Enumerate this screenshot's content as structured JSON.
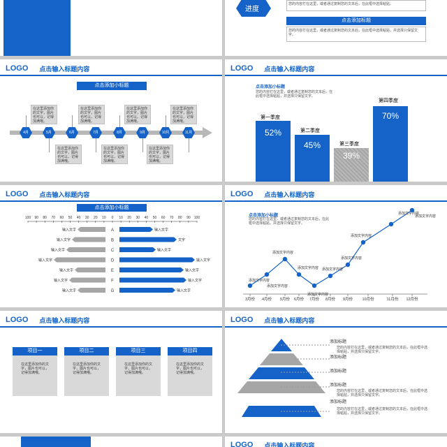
{
  "logo": "LOGO",
  "header_title": "点击输入标题内容",
  "sub_title": "点击添加小标题",
  "lorem_short": "在这里添加你的文字，图片也可以，记得加满哦。",
  "lorem_short2": "在这里添加你的文字，图片也可以，记得加满哦。",
  "lorem_long": "您的内容打在这里，或者通过复制您的文本后，在此框中选择粘贴，并选择只保留文字。",
  "top_right": {
    "hex_label": "进度",
    "box1": "您的内容打在这里，或者通过复制您的文本后，在此框中选择粘贴。",
    "bar_label": "点击添加标题",
    "box2": "您的内容打在这里，或者通过复制您的文本后，在此框中选择粘贴，并选择只保留文字。"
  },
  "timeline": {
    "months": [
      "4月",
      "5月",
      "6月",
      "7月",
      "8月",
      "9月",
      "10月",
      "11月"
    ]
  },
  "quarters": {
    "title": "点击添加小标题",
    "desc": "您的内容打在这里，或者通过复制您的文本后，在此框中选择粘贴，并选择只保留文字。",
    "bars": [
      {
        "label": "第一季度",
        "value": "52%"
      },
      {
        "label": "第二季度",
        "value": "45%"
      },
      {
        "label": "第三季度",
        "value": "39%"
      },
      {
        "label": "第四季度",
        "value": "70%"
      }
    ]
  },
  "butterfly": {
    "axis": [
      "100",
      "90",
      "80",
      "70",
      "60",
      "50",
      "40",
      "30",
      "20",
      "10",
      "0",
      "10",
      "20",
      "30",
      "40",
      "50",
      "60",
      "70",
      "80",
      "90",
      "100"
    ],
    "rows": [
      "A",
      "B",
      "C",
      "D",
      "E",
      "F",
      "G"
    ],
    "left_label": "输入文字",
    "right_label": "输入文字",
    "right_label_short": "文字"
  },
  "line_chart": {
    "title": "点击添加小标题",
    "desc": "您的内容打在这里，或者通过复制您的文本后，在此框中选择粘贴，并选择只保留文字。",
    "x": [
      "3月份",
      "4月份",
      "5月份",
      "6月份",
      "7月份",
      "8月份",
      "9月份",
      "10月份",
      "11月份",
      "12月份"
    ],
    "point_label": "添加文字内容"
  },
  "projects": {
    "items": [
      "项目一",
      "项目二",
      "项目三",
      "项目四"
    ],
    "desc": "在这里添加你的文字，图片也可以，记得加满哦。"
  },
  "pyramid": {
    "label": "添加标题",
    "desc": "您的内容打在这里，或者通过复制您的文本后，在此框中选择粘贴，并选择只保留文字。"
  }
}
